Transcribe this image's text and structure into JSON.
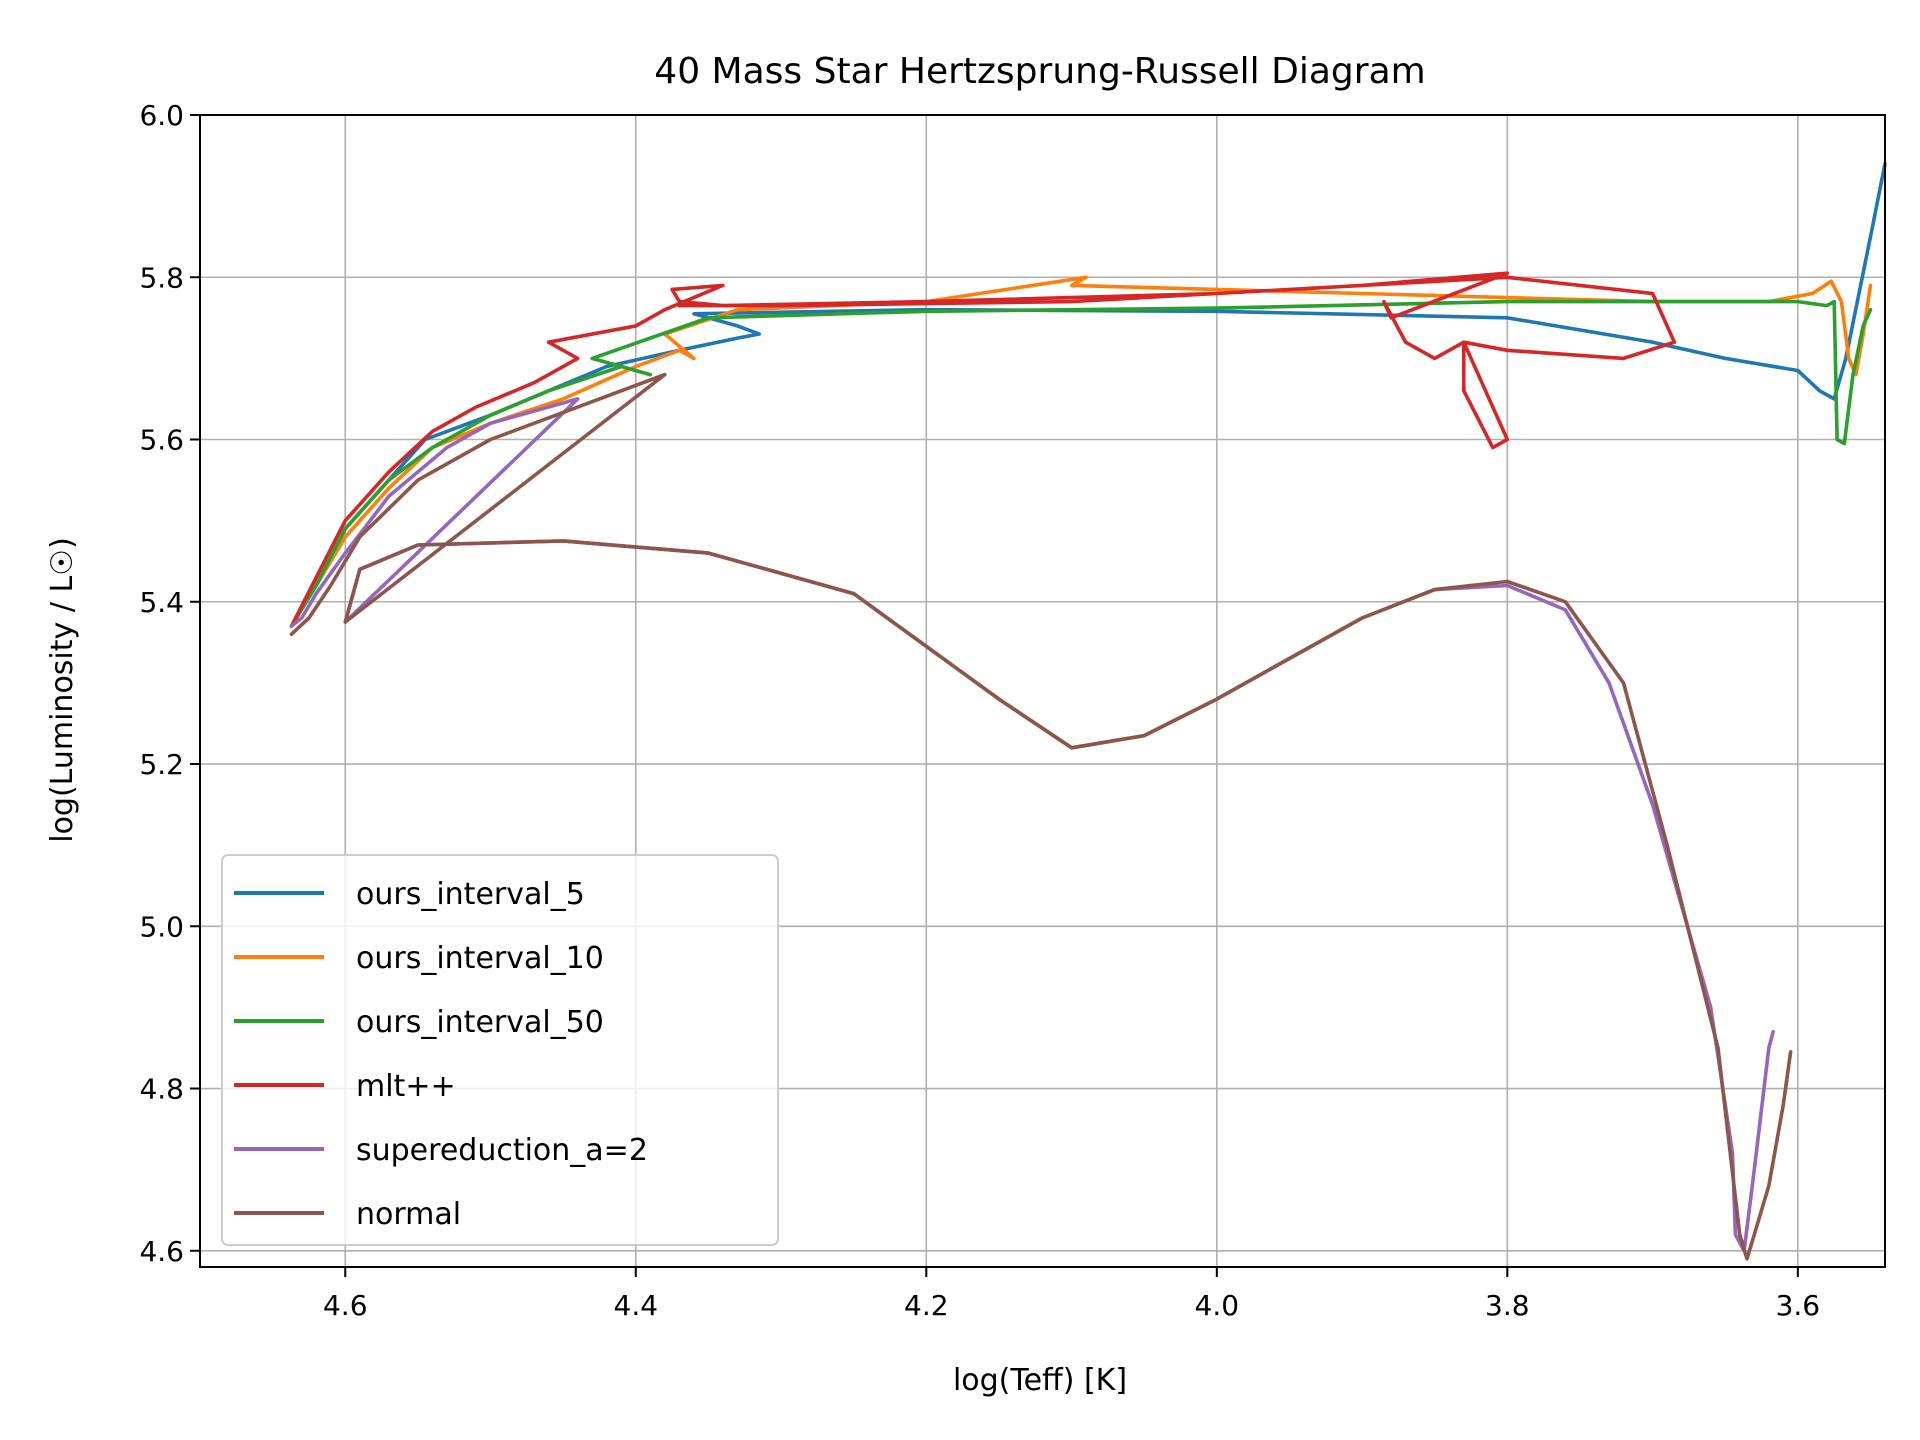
{
  "chart_data": {
    "type": "line",
    "title": "40 Mass Star Hertzsprung-Russell Diagram",
    "xlabel": "log(Teff) [K]",
    "ylabel": "log(Luminosity / L☉)",
    "xlim": [
      4.7,
      3.54
    ],
    "ylim": [
      4.58,
      6.0
    ],
    "x_inverted": true,
    "x_ticks": [
      "4.6",
      "4.4",
      "4.2",
      "4.0",
      "3.8",
      "3.6"
    ],
    "y_ticks": [
      "4.6",
      "4.8",
      "5.0",
      "5.2",
      "5.4",
      "5.6",
      "5.8",
      "6.0"
    ],
    "grid": true,
    "legend_position": "lower-left",
    "series": [
      {
        "name": "ours_interval_5",
        "color": "#1f77b4",
        "x": [
          4.637,
          4.62,
          4.6,
          4.57,
          4.545,
          4.53,
          4.5,
          4.46,
          4.42,
          4.37,
          4.33,
          4.315,
          4.33,
          4.36,
          4.2,
          4.0,
          3.8,
          3.7,
          3.65,
          3.6,
          3.585,
          3.575,
          3.567,
          3.55,
          3.54
        ],
        "y": [
          5.37,
          5.42,
          5.49,
          5.55,
          5.6,
          5.61,
          5.63,
          5.66,
          5.69,
          5.71,
          5.725,
          5.73,
          5.74,
          5.755,
          5.76,
          5.758,
          5.75,
          5.72,
          5.7,
          5.685,
          5.66,
          5.65,
          5.7,
          5.85,
          5.94
        ]
      },
      {
        "name": "ours_interval_10",
        "color": "#ff7f0e",
        "x": [
          4.637,
          4.62,
          4.6,
          4.57,
          4.54,
          4.5,
          4.45,
          4.4,
          4.37,
          4.36,
          4.38,
          4.33,
          4.2,
          4.09,
          4.1,
          3.9,
          3.7,
          3.62,
          3.59,
          3.577,
          3.57,
          3.565,
          3.56,
          3.555,
          3.55
        ],
        "y": [
          5.37,
          5.42,
          5.48,
          5.54,
          5.59,
          5.62,
          5.65,
          5.69,
          5.71,
          5.7,
          5.73,
          5.76,
          5.77,
          5.8,
          5.79,
          5.78,
          5.77,
          5.77,
          5.78,
          5.795,
          5.77,
          5.7,
          5.68,
          5.73,
          5.79
        ]
      },
      {
        "name": "ours_interval_50",
        "color": "#2ca02c",
        "x": [
          4.637,
          4.62,
          4.6,
          4.57,
          4.54,
          4.5,
          4.46,
          4.41,
          4.39,
          4.43,
          4.35,
          4.2,
          4.0,
          3.8,
          3.6,
          3.58,
          3.575,
          3.573,
          3.568,
          3.562,
          3.555,
          3.55
        ],
        "y": [
          5.37,
          5.42,
          5.49,
          5.55,
          5.59,
          5.63,
          5.66,
          5.69,
          5.68,
          5.7,
          5.75,
          5.758,
          5.762,
          5.77,
          5.77,
          5.765,
          5.77,
          5.6,
          5.595,
          5.68,
          5.74,
          5.76
        ]
      },
      {
        "name": "mlt++",
        "color": "#d62728",
        "x": [
          4.637,
          4.62,
          4.6,
          4.57,
          4.54,
          4.51,
          4.47,
          4.44,
          4.46,
          4.4,
          4.38,
          4.34,
          4.375,
          4.37,
          4.34,
          4.2,
          4.0,
          3.9,
          3.8,
          3.7,
          3.685,
          3.72,
          3.8,
          3.83,
          3.8,
          3.81,
          3.83,
          3.83,
          3.85,
          3.87,
          3.885,
          3.88,
          3.8,
          3.9,
          4.0,
          4.1,
          4.3,
          4.37
        ],
        "y": [
          5.37,
          5.43,
          5.5,
          5.56,
          5.61,
          5.64,
          5.67,
          5.7,
          5.72,
          5.74,
          5.76,
          5.79,
          5.785,
          5.77,
          5.765,
          5.77,
          5.78,
          5.79,
          5.8,
          5.78,
          5.72,
          5.7,
          5.71,
          5.72,
          5.6,
          5.59,
          5.66,
          5.72,
          5.7,
          5.72,
          5.77,
          5.75,
          5.805,
          5.79,
          5.78,
          5.77,
          5.765,
          5.765
        ]
      },
      {
        "name": "supereduction_a=2",
        "color": "#9467bd",
        "x": [
          4.637,
          4.63,
          4.62,
          4.6,
          4.57,
          4.53,
          4.5,
          4.44,
          4.6,
          4.59,
          4.55,
          4.45,
          4.35,
          4.25,
          4.15,
          4.1,
          4.05,
          4.0,
          3.95,
          3.9,
          3.85,
          3.8,
          3.76,
          3.73,
          3.7,
          3.66,
          3.645,
          3.643,
          3.637,
          3.63,
          3.62,
          3.617
        ],
        "y": [
          5.37,
          5.38,
          5.41,
          5.46,
          5.53,
          5.59,
          5.62,
          5.65,
          5.375,
          5.44,
          5.47,
          5.475,
          5.46,
          5.41,
          5.28,
          5.22,
          5.235,
          5.28,
          5.33,
          5.38,
          5.415,
          5.42,
          5.39,
          5.3,
          5.15,
          4.9,
          4.72,
          4.62,
          4.6,
          4.7,
          4.85,
          4.87
        ]
      },
      {
        "name": "normal",
        "color": "#8c564b",
        "x": [
          4.637,
          4.625,
          4.61,
          4.59,
          4.55,
          4.5,
          4.44,
          4.38,
          4.6,
          4.59,
          4.55,
          4.45,
          4.35,
          4.25,
          4.15,
          4.1,
          4.05,
          4.0,
          3.95,
          3.9,
          3.85,
          3.8,
          3.76,
          3.72,
          3.69,
          3.655,
          3.64,
          3.635,
          3.62,
          3.61,
          3.605
        ],
        "y": [
          5.36,
          5.38,
          5.42,
          5.48,
          5.55,
          5.6,
          5.64,
          5.68,
          5.375,
          5.44,
          5.47,
          5.475,
          5.46,
          5.41,
          5.28,
          5.22,
          5.235,
          5.28,
          5.33,
          5.38,
          5.415,
          5.425,
          5.4,
          5.3,
          5.1,
          4.85,
          4.62,
          4.59,
          4.68,
          4.78,
          4.845
        ]
      }
    ]
  }
}
